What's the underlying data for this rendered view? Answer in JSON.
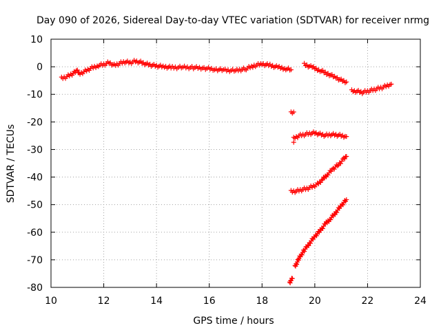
{
  "chart_data": {
    "type": "scatter",
    "title": "Day 090 of 2026, Sidereal Day-to-day VTEC variation (SDTVAR) for receiver nrmg",
    "xlabel": "GPS time / hours",
    "ylabel": "SDTVAR / TECUs",
    "xlim": [
      10,
      24
    ],
    "ylim": [
      -80,
      10
    ],
    "xticks": [
      "10",
      "12",
      "14",
      "16",
      "18",
      "20",
      "22",
      "24"
    ],
    "yticks": [
      "10",
      "0",
      "-10",
      "-20",
      "-30",
      "-40",
      "-50",
      "-60",
      "-70",
      "-80"
    ],
    "grid": true,
    "marker": "+",
    "color": "#ff0000",
    "series": [
      {
        "points": [
          [
            10.4,
            -4.2
          ],
          [
            10.6,
            -3.6
          ],
          [
            10.8,
            -2.6
          ],
          [
            11.0,
            -1.4
          ],
          [
            11.1,
            -2.5
          ],
          [
            11.3,
            -1.6
          ],
          [
            11.5,
            -0.6
          ],
          [
            11.8,
            0.5
          ],
          [
            12.0,
            0.8
          ],
          [
            12.2,
            1.5
          ],
          [
            12.4,
            0.5
          ],
          [
            12.6,
            1.2
          ],
          [
            12.8,
            1.8
          ],
          [
            13.0,
            1.5
          ],
          [
            13.2,
            2.0
          ],
          [
            13.4,
            1.6
          ],
          [
            13.6,
            1.0
          ],
          [
            13.8,
            0.6
          ],
          [
            14.0,
            0.3
          ],
          [
            14.3,
            0.0
          ],
          [
            14.6,
            -0.3
          ],
          [
            15.0,
            -0.2
          ],
          [
            15.4,
            -0.3
          ],
          [
            15.8,
            -0.5
          ],
          [
            16.2,
            -0.9
          ],
          [
            16.6,
            -1.3
          ],
          [
            17.0,
            -1.4
          ],
          [
            17.4,
            -0.7
          ],
          [
            17.7,
            0.4
          ],
          [
            18.0,
            1.0
          ],
          [
            18.3,
            0.5
          ],
          [
            18.6,
            -0.2
          ],
          [
            18.9,
            -0.7
          ],
          [
            19.1,
            -1.1
          ]
        ]
      },
      {
        "points": [
          [
            19.6,
            0.8
          ],
          [
            19.9,
            -0.2
          ],
          [
            20.2,
            -1.3
          ],
          [
            20.5,
            -2.6
          ],
          [
            20.8,
            -3.9
          ],
          [
            21.0,
            -4.9
          ],
          [
            21.2,
            -5.5
          ]
        ]
      },
      {
        "points": [
          [
            21.4,
            -8.8
          ],
          [
            21.6,
            -8.9
          ],
          [
            21.8,
            -9.3
          ],
          [
            22.0,
            -8.9
          ],
          [
            22.2,
            -8.4
          ],
          [
            22.4,
            -7.9
          ],
          [
            22.6,
            -7.4
          ],
          [
            22.8,
            -6.6
          ],
          [
            22.9,
            -6.3
          ]
        ]
      },
      {
        "points": [
          [
            19.1,
            -16.8
          ],
          [
            19.2,
            -16.4
          ]
        ]
      },
      {
        "points": [
          [
            19.2,
            -26.0
          ],
          [
            19.4,
            -25.0
          ],
          [
            19.6,
            -24.6
          ],
          [
            19.8,
            -24.2
          ],
          [
            20.0,
            -24.0
          ],
          [
            20.2,
            -24.5
          ],
          [
            20.4,
            -24.9
          ],
          [
            20.6,
            -24.6
          ],
          [
            20.8,
            -24.7
          ],
          [
            21.0,
            -25.0
          ],
          [
            21.2,
            -25.3
          ]
        ]
      },
      {
        "points": [
          [
            19.2,
            -27.4
          ]
        ]
      },
      {
        "points": [
          [
            19.1,
            -45.3
          ],
          [
            19.3,
            -45.1
          ],
          [
            19.5,
            -44.6
          ],
          [
            19.7,
            -44.2
          ],
          [
            19.9,
            -43.5
          ],
          [
            20.1,
            -42.6
          ],
          [
            20.3,
            -40.8
          ],
          [
            20.5,
            -38.8
          ],
          [
            20.7,
            -37.0
          ],
          [
            20.9,
            -35.4
          ],
          [
            21.1,
            -33.5
          ],
          [
            21.2,
            -32.5
          ]
        ]
      },
      {
        "points": [
          [
            19.25,
            -72.5
          ],
          [
            19.4,
            -69.5
          ],
          [
            19.6,
            -66.5
          ],
          [
            19.8,
            -64.0
          ],
          [
            20.0,
            -61.5
          ],
          [
            20.2,
            -59.5
          ],
          [
            20.4,
            -57.0
          ],
          [
            20.6,
            -55.0
          ],
          [
            20.8,
            -52.8
          ],
          [
            21.0,
            -50.3
          ],
          [
            21.2,
            -48.2
          ]
        ]
      },
      {
        "points": [
          [
            19.05,
            -78.5
          ],
          [
            19.1,
            -77.5
          ],
          [
            19.15,
            -76.8
          ]
        ]
      }
    ]
  }
}
